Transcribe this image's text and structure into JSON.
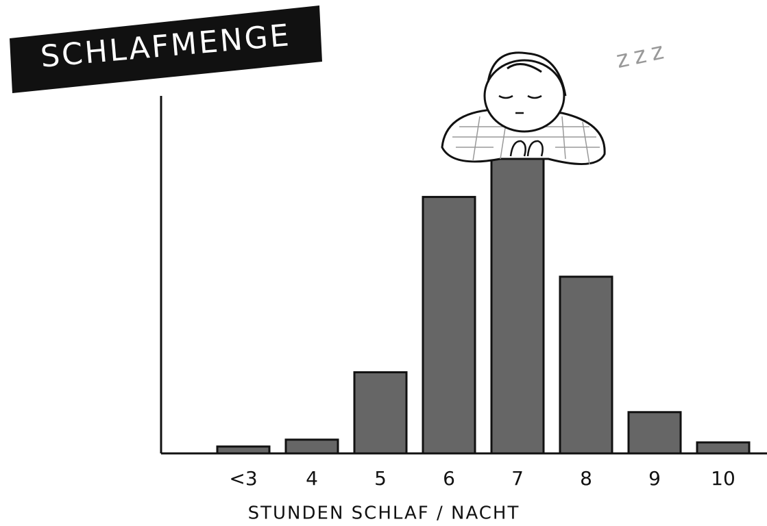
{
  "chart_data": {
    "type": "bar",
    "title": "SCHLAFMENGE",
    "annotation": "zzz",
    "x_label": "STUNDEN SCHLAF / NACHT",
    "categories": [
      "<3",
      "4",
      "5",
      "6",
      "7",
      "8",
      "9",
      "10"
    ],
    "values": [
      10,
      20,
      118,
      373,
      430,
      257,
      60,
      16
    ],
    "color": "#666666",
    "ylim": [
      0,
      520
    ]
  }
}
